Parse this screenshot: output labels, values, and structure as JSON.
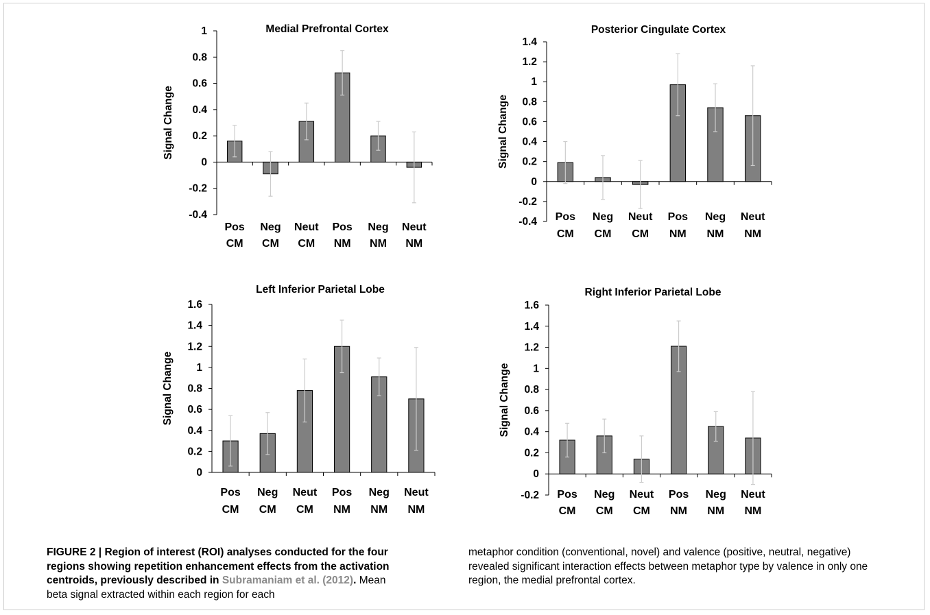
{
  "chart_data": [
    {
      "type": "bar",
      "title": "Medial Prefrontal Cortex",
      "ylabel": "Signal Change",
      "categories": [
        [
          "Pos",
          "CM"
        ],
        [
          "Neg",
          "CM"
        ],
        [
          "Neut",
          "CM"
        ],
        [
          "Pos",
          "NM"
        ],
        [
          "Neg",
          "NM"
        ],
        [
          "Neut",
          "NM"
        ]
      ],
      "values": [
        0.16,
        -0.09,
        0.31,
        0.68,
        0.2,
        -0.04
      ],
      "errors": [
        0.12,
        0.17,
        0.14,
        0.17,
        0.11,
        0.27
      ],
      "ylim": [
        -0.4,
        1
      ],
      "yticks": [
        -0.4,
        -0.2,
        0,
        0.2,
        0.4,
        0.6,
        0.8,
        1
      ],
      "ytick_labels": [
        "-0.4",
        "-0.2",
        "0",
        "0.2",
        "0.4",
        "0.6",
        "0.8",
        "1"
      ],
      "bar_color": "#808080",
      "error_color": "#cccccc"
    },
    {
      "type": "bar",
      "title": "Posterior Cingulate Cortex",
      "ylabel": "Signal Change",
      "categories": [
        [
          "Pos",
          "CM"
        ],
        [
          "Neg",
          "CM"
        ],
        [
          "Neut",
          "CM"
        ],
        [
          "Pos",
          "NM"
        ],
        [
          "Neg",
          "NM"
        ],
        [
          "Neut",
          "NM"
        ]
      ],
      "values": [
        0.19,
        0.04,
        -0.03,
        0.97,
        0.74,
        0.66
      ],
      "errors": [
        0.21,
        0.22,
        0.24,
        0.31,
        0.24,
        0.5
      ],
      "ylim": [
        -0.4,
        1.4
      ],
      "yticks": [
        -0.4,
        -0.2,
        0,
        0.2,
        0.4,
        0.6,
        0.8,
        1,
        1.2,
        1.4
      ],
      "ytick_labels": [
        "-0.4",
        "-0.2",
        "0",
        "0.2",
        "0.4",
        "0.6",
        "0.8",
        "1",
        "1.2",
        "1.4"
      ],
      "bar_color": "#808080",
      "error_color": "#cccccc"
    },
    {
      "type": "bar",
      "title": "Left Inferior Parietal Lobe",
      "ylabel": "Signal Change",
      "categories": [
        [
          "Pos",
          "CM"
        ],
        [
          "Neg",
          "CM"
        ],
        [
          "Neut",
          "CM"
        ],
        [
          "Pos",
          "NM"
        ],
        [
          "Neg",
          "NM"
        ],
        [
          "Neut",
          "NM"
        ]
      ],
      "values": [
        0.3,
        0.37,
        0.78,
        1.2,
        0.91,
        0.7
      ],
      "errors": [
        0.24,
        0.2,
        0.3,
        0.25,
        0.18,
        0.49
      ],
      "ylim": [
        0,
        1.6
      ],
      "yticks": [
        0,
        0.2,
        0.4,
        0.6,
        0.8,
        1,
        1.2,
        1.4,
        1.6
      ],
      "ytick_labels": [
        "0",
        "0.2",
        "0.4",
        "0.6",
        "0.8",
        "1",
        "1.2",
        "1.4",
        "1.6"
      ],
      "bar_color": "#808080",
      "error_color": "#cccccc"
    },
    {
      "type": "bar",
      "title": "Right Inferior Parietal Lobe",
      "ylabel": "Signal Change",
      "categories": [
        [
          "Pos",
          "CM"
        ],
        [
          "Neg",
          "CM"
        ],
        [
          "Neut",
          "CM"
        ],
        [
          "Pos",
          "NM"
        ],
        [
          "Neg",
          "NM"
        ],
        [
          "Neut",
          "NM"
        ]
      ],
      "values": [
        0.32,
        0.36,
        0.14,
        1.21,
        0.45,
        0.34
      ],
      "errors": [
        0.16,
        0.16,
        0.22,
        0.24,
        0.14,
        0.44
      ],
      "ylim": [
        -0.2,
        1.6
      ],
      "yticks": [
        -0.2,
        0,
        0.2,
        0.4,
        0.6,
        0.8,
        1,
        1.2,
        1.4,
        1.6
      ],
      "ytick_labels": [
        "-0.2",
        "0",
        "0.2",
        "0.4",
        "0.6",
        "0.8",
        "1",
        "1.2",
        "1.4",
        "1.6"
      ],
      "bar_color": "#808080",
      "error_color": "#cccccc"
    }
  ],
  "caption": {
    "label": "FIGURE 2 | ",
    "bold_text": "Region of interest (ROI) analyses conducted for the four regions showing repetition enhancement effects from the activation centroids, previously described in ",
    "citation": "Subramaniam et al. (2012)",
    "period": ".",
    "body_left": " Mean beta signal extracted within each region for each",
    "body_right": "metaphor condition (conventional, novel) and valence (positive, neutral, negative) revealed significant interaction effects between metaphor type by valence in only one region, the medial prefrontal cortex."
  }
}
